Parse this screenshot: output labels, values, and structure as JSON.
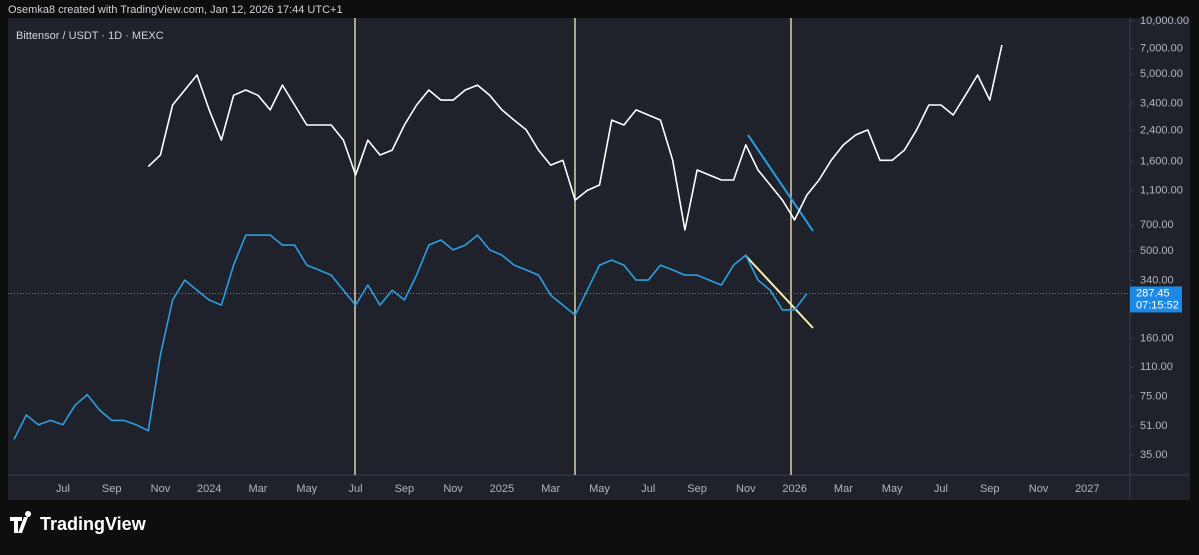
{
  "header": "Osemka8 created with TradingView.com, Jan 12, 2026 17:44 UTC+1",
  "footer": {
    "brand": "TradingView"
  },
  "chart_data": {
    "type": "line",
    "title": "Bittensor / USDT · 1D · MEXC",
    "categories": [
      null,
      null,
      null,
      null,
      "Jul",
      null,
      null,
      null,
      "Sep",
      null,
      null,
      null,
      "Nov",
      null,
      null,
      null,
      "2024",
      null,
      null,
      null,
      "Mar",
      null,
      null,
      null,
      "May",
      null,
      null,
      null,
      "Jul",
      null,
      null,
      null,
      "Sep",
      null,
      null,
      null,
      "Nov",
      null,
      null,
      null,
      "2025",
      null,
      null,
      null,
      "Mar",
      null,
      null,
      null,
      "May",
      null,
      null,
      null,
      "Jul",
      null,
      null,
      null,
      "Sep",
      null,
      null,
      null,
      "Nov",
      null,
      null,
      null,
      "2026",
      null,
      null,
      null,
      "Mar",
      null,
      null,
      null,
      "May",
      null,
      null,
      null,
      "Jul",
      null,
      null,
      null,
      "Sep",
      null,
      null,
      null,
      "Nov",
      null,
      null,
      null,
      "2027",
      null,
      null,
      null
    ],
    "series": [
      {
        "color": "#2b9fe0",
        "values": [
          43,
          59,
          52,
          55,
          52,
          67,
          77,
          63,
          55,
          55,
          52,
          48,
          129,
          264,
          342,
          300,
          264,
          247,
          416,
          615,
          615,
          615,
          540,
          540,
          416,
          390,
          365,
          300,
          247,
          321,
          247,
          300,
          264,
          365,
          540,
          577,
          507,
          540,
          615,
          507,
          474,
          416,
          390,
          365,
          281,
          247,
          217,
          300,
          416,
          444,
          416,
          342,
          342,
          416,
          390,
          365,
          365,
          342,
          321,
          416,
          474,
          342,
          300,
          232,
          232,
          287,
          null,
          null,
          null,
          null,
          null,
          null,
          null,
          null,
          null,
          null,
          null,
          null,
          null,
          null,
          null,
          null,
          null,
          null,
          null,
          null,
          null,
          null,
          null,
          null,
          null,
          null
        ]
      },
      {
        "color": "#ffffff",
        "values": [
          null,
          null,
          null,
          null,
          null,
          null,
          null,
          null,
          null,
          null,
          null,
          1500,
          1745,
          3350,
          4070,
          4950,
          3140,
          2120,
          3800,
          4070,
          3800,
          3140,
          4340,
          3350,
          2580,
          2580,
          2580,
          2120,
          1345,
          2120,
          1745,
          1860,
          2580,
          3350,
          4070,
          3570,
          3570,
          4070,
          4340,
          3800,
          3140,
          2750,
          2420,
          1860,
          1530,
          1630,
          970,
          1100,
          1180,
          2750,
          2580,
          3140,
          2940,
          2750,
          1630,
          657,
          1435,
          1345,
          1260,
          1260,
          1990,
          1435,
          1180,
          970,
          749,
          1035,
          1260,
          1630,
          1990,
          2265,
          2420,
          1630,
          1630,
          1860,
          2420,
          3350,
          3350,
          2940,
          3800,
          4950,
          3570,
          7320,
          null,
          null,
          null,
          null,
          null,
          null,
          null,
          null,
          null,
          null
        ]
      }
    ],
    "ylim": [
      27,
      10400
    ],
    "log_scale": true,
    "grid": false,
    "yticks": [
      {
        "value": 35,
        "label": "35.00"
      },
      {
        "value": 51,
        "label": "51.00"
      },
      {
        "value": 75,
        "label": "75.00"
      },
      {
        "value": 110,
        "label": "110.00"
      },
      {
        "value": 160,
        "label": "160.00"
      },
      {
        "value": 340,
        "label": "340.00"
      },
      {
        "value": 500,
        "label": "500.00"
      },
      {
        "value": 700,
        "label": "700.00"
      },
      {
        "value": 1100,
        "label": "1,100.00"
      },
      {
        "value": 1600,
        "label": "1,600.00"
      },
      {
        "value": 2400,
        "label": "2,400.00"
      },
      {
        "value": 3400,
        "label": "3,400.00"
      },
      {
        "value": 5000,
        "label": "5,000.00"
      },
      {
        "value": 7000,
        "label": "7,000.00"
      },
      {
        "value": 10000,
        "label": "10,000.00"
      }
    ],
    "last_price": 287.45,
    "countdown": "07:15:52"
  }
}
